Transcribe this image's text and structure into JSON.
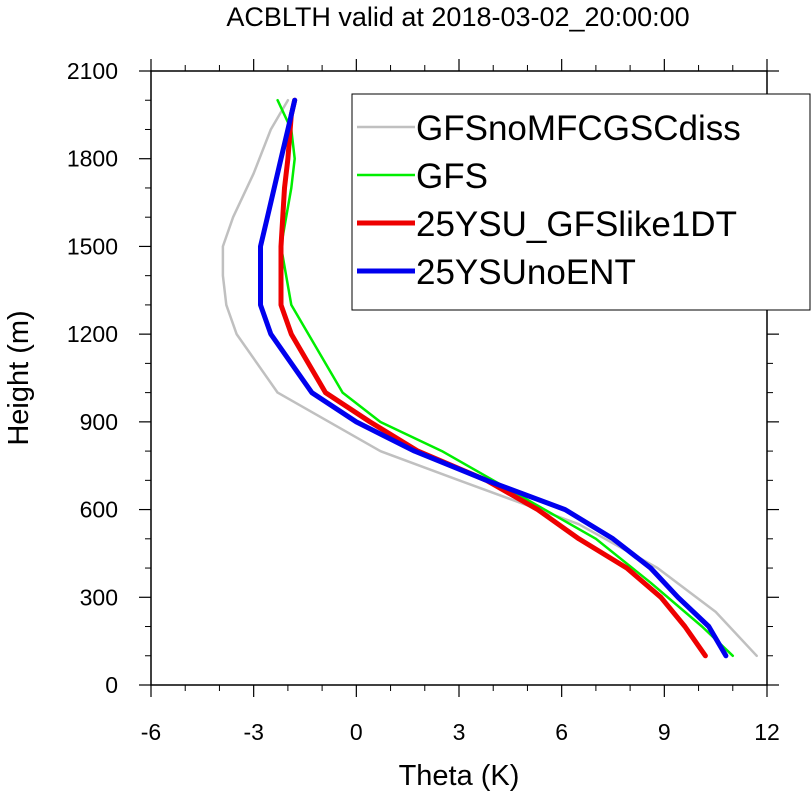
{
  "chart_data": {
    "type": "line",
    "title": "ACBLTH valid at 2018-03-02_20:00:00",
    "xlabel": "Theta (K)",
    "ylabel": "Height (m)",
    "xlim": [
      -6,
      12
    ],
    "ylim": [
      0,
      2100
    ],
    "xticks": [
      "-6",
      "-3",
      "0",
      "3",
      "6",
      "9",
      "12"
    ],
    "yticks": [
      "0",
      "300",
      "600",
      "900",
      "1200",
      "1500",
      "1800",
      "2100"
    ],
    "legend_position": "top-right",
    "grid": false,
    "series": [
      {
        "name": "GFSnoMFCGSCdiss",
        "color": "#c0c0c0",
        "linewidth": "thin",
        "points": [
          [
            11.7,
            100
          ],
          [
            10.5,
            250
          ],
          [
            8.8,
            400
          ],
          [
            6.5,
            550
          ],
          [
            3.0,
            700
          ],
          [
            0.7,
            800
          ],
          [
            -2.3,
            1000
          ],
          [
            -3.5,
            1200
          ],
          [
            -3.8,
            1300
          ],
          [
            -3.9,
            1400
          ],
          [
            -3.9,
            1500
          ],
          [
            -3.6,
            1600
          ],
          [
            -3.0,
            1750
          ],
          [
            -2.5,
            1900
          ],
          [
            -2.0,
            2000
          ]
        ]
      },
      {
        "name": "GFS",
        "color": "#00ee00",
        "linewidth": "thin",
        "points": [
          [
            11.0,
            100
          ],
          [
            10.1,
            200
          ],
          [
            8.6,
            350
          ],
          [
            7.0,
            500
          ],
          [
            5.5,
            600
          ],
          [
            4.0,
            700
          ],
          [
            2.5,
            800
          ],
          [
            0.7,
            900
          ],
          [
            -0.4,
            1000
          ],
          [
            -1.4,
            1200
          ],
          [
            -1.9,
            1300
          ],
          [
            -2.2,
            1500
          ],
          [
            -1.9,
            1700
          ],
          [
            -1.8,
            1800
          ],
          [
            -1.9,
            1900
          ],
          [
            -2.3,
            2000
          ]
        ]
      },
      {
        "name": "25YSU_GFSlike1DT",
        "color": "#ee0000",
        "linewidth": "thick",
        "points": [
          [
            10.2,
            100
          ],
          [
            9.6,
            200
          ],
          [
            8.9,
            300
          ],
          [
            7.9,
            400
          ],
          [
            6.5,
            500
          ],
          [
            5.3,
            600
          ],
          [
            3.8,
            700
          ],
          [
            1.8,
            800
          ],
          [
            0.4,
            900
          ],
          [
            -0.9,
            1000
          ],
          [
            -1.9,
            1200
          ],
          [
            -2.2,
            1300
          ],
          [
            -2.2,
            1500
          ],
          [
            -2.1,
            1700
          ],
          [
            -2.0,
            1800
          ],
          [
            -1.9,
            1950
          ],
          [
            -1.8,
            2000
          ]
        ]
      },
      {
        "name": "25YSUnoENT",
        "color": "#0000ee",
        "linewidth": "thick",
        "points": [
          [
            10.8,
            100
          ],
          [
            10.3,
            200
          ],
          [
            9.4,
            300
          ],
          [
            8.6,
            400
          ],
          [
            7.5,
            500
          ],
          [
            6.1,
            600
          ],
          [
            3.8,
            700
          ],
          [
            1.7,
            800
          ],
          [
            0.0,
            900
          ],
          [
            -1.3,
            1000
          ],
          [
            -2.5,
            1200
          ],
          [
            -2.8,
            1300
          ],
          [
            -2.8,
            1400
          ],
          [
            -2.8,
            1500
          ],
          [
            -2.6,
            1600
          ],
          [
            -2.4,
            1700
          ],
          [
            -2.2,
            1800
          ],
          [
            -2.0,
            1900
          ],
          [
            -1.8,
            2000
          ]
        ]
      }
    ]
  }
}
